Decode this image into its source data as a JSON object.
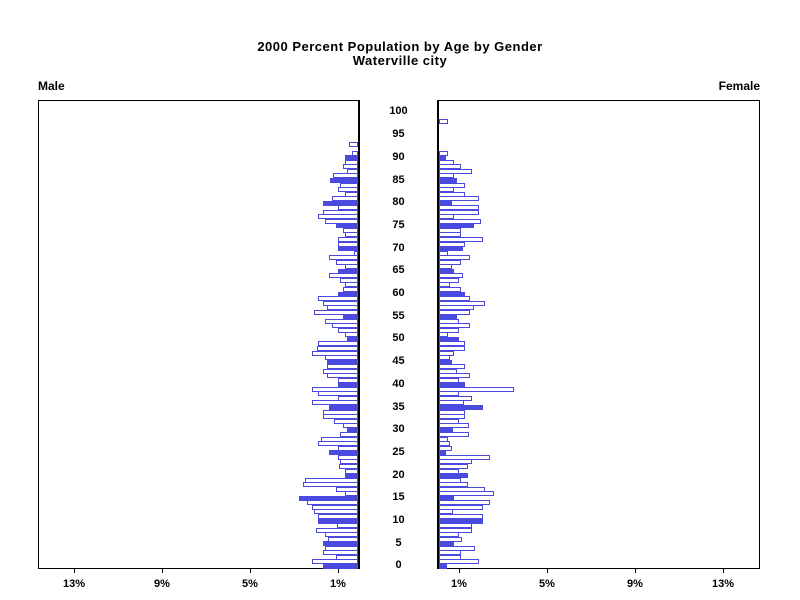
{
  "title": {
    "line1": "2000 Percent Population by Age by Gender",
    "line2": "Waterville city"
  },
  "panel_labels": {
    "left": "Male",
    "right": "Female"
  },
  "colors": {
    "bar_blue": "#4a4ae0",
    "axis_black": "#000000",
    "background": "#ffffff"
  },
  "chart_data": {
    "type": "bar",
    "variant": "population-pyramid",
    "unit": "percent of population",
    "note": "single-year-of-age bars; ages divisible by 5 drawn solid, others hollow",
    "age_tick_labels": [
      0,
      5,
      10,
      15,
      20,
      25,
      30,
      35,
      40,
      45,
      50,
      55,
      60,
      65,
      70,
      75,
      80,
      85,
      90,
      95,
      100
    ],
    "x_axis": {
      "male_ticks": [
        {
          "value": 13,
          "label": "13%"
        },
        {
          "value": 9,
          "label": "9%"
        },
        {
          "value": 5,
          "label": "5%"
        },
        {
          "value": 1,
          "label": "1%"
        }
      ],
      "female_ticks": [
        {
          "value": 1,
          "label": "1%"
        },
        {
          "value": 5,
          "label": "5%"
        },
        {
          "value": 9,
          "label": "9%"
        },
        {
          "value": 13,
          "label": "13%"
        }
      ],
      "xlim": [
        0,
        14.6
      ]
    },
    "ages": [
      0,
      1,
      2,
      3,
      4,
      5,
      6,
      7,
      8,
      9,
      10,
      11,
      12,
      13,
      14,
      15,
      16,
      17,
      18,
      19,
      20,
      21,
      22,
      23,
      24,
      25,
      26,
      27,
      28,
      29,
      30,
      31,
      32,
      33,
      34,
      35,
      36,
      37,
      38,
      39,
      40,
      41,
      42,
      43,
      44,
      45,
      46,
      47,
      48,
      49,
      50,
      51,
      52,
      53,
      54,
      55,
      56,
      57,
      58,
      59,
      60,
      61,
      62,
      63,
      64,
      65,
      66,
      67,
      68,
      69,
      70,
      71,
      72,
      73,
      74,
      75,
      76,
      77,
      78,
      79,
      80,
      81,
      82,
      83,
      84,
      85,
      86,
      87,
      88,
      89,
      90,
      91,
      92,
      93,
      94,
      95,
      96,
      97,
      98,
      99,
      100
    ],
    "series": [
      {
        "name": "Male",
        "values": [
          1.6,
          2.1,
          1.0,
          1.6,
          1.5,
          1.6,
          1.35,
          1.5,
          1.9,
          0.95,
          1.8,
          1.8,
          2.0,
          2.1,
          2.3,
          2.7,
          0.6,
          1.0,
          2.5,
          2.4,
          0.6,
          0.6,
          0.85,
          0.8,
          0.9,
          1.3,
          0.9,
          1.8,
          1.7,
          0.8,
          0.5,
          0.7,
          1.1,
          1.6,
          1.6,
          1.3,
          2.1,
          0.9,
          1.8,
          2.1,
          0.9,
          0.9,
          1.4,
          1.6,
          1.4,
          1.4,
          1.5,
          2.1,
          1.85,
          1.8,
          0.5,
          0.6,
          0.9,
          1.2,
          1.5,
          0.7,
          2.0,
          1.4,
          1.6,
          1.8,
          0.9,
          0.7,
          0.6,
          0.8,
          1.3,
          0.9,
          0.6,
          1.0,
          1.3,
          0.2,
          0.9,
          0.9,
          0.9,
          0.6,
          0.7,
          1.0,
          1.5,
          1.8,
          1.6,
          0.9,
          1.6,
          1.2,
          0.6,
          0.9,
          0.8,
          1.25,
          1.15,
          0.5,
          0.7,
          0.6,
          0.6,
          0.25,
          0,
          0.4,
          0,
          0,
          0,
          0,
          0,
          0,
          0
        ]
      },
      {
        "name": "Female",
        "values": [
          0.35,
          1.8,
          1.0,
          1.0,
          1.65,
          0.7,
          1.05,
          0.9,
          1.5,
          1.5,
          2.0,
          2.0,
          0.65,
          2.0,
          2.3,
          0.7,
          2.5,
          2.1,
          1.3,
          1.0,
          1.3,
          0.9,
          1.3,
          1.5,
          2.3,
          0.3,
          0.6,
          0.5,
          0.4,
          1.35,
          0.65,
          1.35,
          0.9,
          1.2,
          1.2,
          2.0,
          1.15,
          1.5,
          0.9,
          3.4,
          1.2,
          0.9,
          1.4,
          0.8,
          1.2,
          0.6,
          0.5,
          0.7,
          1.2,
          1.2,
          0.9,
          0.4,
          0.9,
          1.4,
          0.9,
          0.8,
          1.4,
          1.6,
          2.1,
          1.4,
          1.2,
          1.0,
          0.5,
          0.9,
          1.1,
          0.7,
          0.6,
          1.0,
          1.4,
          0.4,
          1.1,
          1.2,
          2.0,
          1.0,
          1.0,
          1.6,
          1.9,
          0.7,
          1.8,
          1.8,
          0.6,
          1.8,
          1.2,
          0.7,
          1.2,
          0.8,
          0.7,
          1.5,
          1.0,
          0.7,
          0.3,
          0.4,
          0,
          0,
          0,
          0,
          0,
          0,
          0.4,
          0,
          0
        ]
      }
    ]
  }
}
